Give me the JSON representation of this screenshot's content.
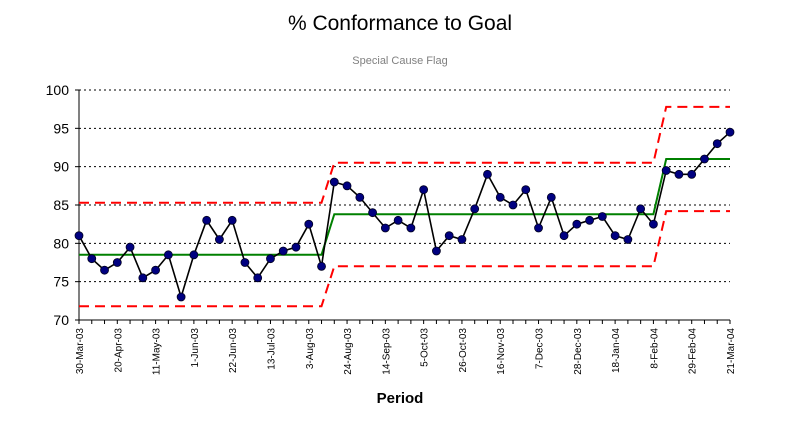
{
  "chart_data": {
    "type": "line",
    "title": "% Conformance to Goal",
    "subtitle": "Special Cause Flag",
    "xlabel": "Period",
    "ylabel": "",
    "ylim": [
      70,
      100
    ],
    "yticks": [
      70,
      75,
      80,
      85,
      90,
      95,
      100
    ],
    "grid": "horizontal dotted",
    "x_tick_labels": [
      {
        "index": 0,
        "label": "30-Mar-03"
      },
      {
        "index": 3,
        "label": "20-Apr-03"
      },
      {
        "index": 6,
        "label": "11-May-03"
      },
      {
        "index": 9,
        "label": "1-Jun-03"
      },
      {
        "index": 12,
        "label": "22-Jun-03"
      },
      {
        "index": 15,
        "label": "13-Jul-03"
      },
      {
        "index": 18,
        "label": "3-Aug-03"
      },
      {
        "index": 21,
        "label": "24-Aug-03"
      },
      {
        "index": 24,
        "label": "14-Sep-03"
      },
      {
        "index": 27,
        "label": "5-Oct-03"
      },
      {
        "index": 30,
        "label": "26-Oct-03"
      },
      {
        "index": 33,
        "label": "16-Nov-03"
      },
      {
        "index": 36,
        "label": "7-Dec-03"
      },
      {
        "index": 39,
        "label": "28-Dec-03"
      },
      {
        "index": 42,
        "label": "18-Jan-04"
      },
      {
        "index": 45,
        "label": "8-Feb-04"
      },
      {
        "index": 48,
        "label": "29-Feb-04"
      },
      {
        "index": 51,
        "label": "21-Mar-04"
      }
    ],
    "series": [
      {
        "role": "data",
        "color": "#000000",
        "marker_color": "#000080",
        "values": [
          81,
          78,
          76.5,
          77.5,
          79.5,
          75.5,
          76.5,
          78.5,
          73,
          78.5,
          83,
          80.5,
          83,
          77.5,
          75.5,
          78,
          79,
          79.5,
          82.5,
          77,
          88,
          87.5,
          86,
          84,
          82,
          83,
          82,
          87,
          79,
          81,
          80.5,
          84.5,
          89,
          86,
          85,
          87,
          82,
          86,
          81,
          82.5,
          83,
          83.5,
          81,
          80.5,
          84.5,
          82.5,
          89.5,
          89,
          89,
          91,
          93,
          94.5
        ]
      },
      {
        "role": "center-line",
        "color": "#008000",
        "segments": [
          {
            "from": 0,
            "to": 19,
            "value": 78.5
          },
          {
            "from": 20,
            "to": 45,
            "value": 83.8
          },
          {
            "from": 46,
            "to": 51,
            "value": 91
          }
        ]
      },
      {
        "role": "upper-limit",
        "color": "#ff0000",
        "segments": [
          {
            "from": 0,
            "to": 19,
            "value": 85.3
          },
          {
            "from": 20,
            "to": 45,
            "value": 90.5
          },
          {
            "from": 46,
            "to": 51,
            "value": 97.8
          }
        ]
      },
      {
        "role": "lower-limit",
        "color": "#ff0000",
        "segments": [
          {
            "from": 0,
            "to": 19,
            "value": 71.8
          },
          {
            "from": 20,
            "to": 45,
            "value": 77
          },
          {
            "from": 46,
            "to": 51,
            "value": 84.2
          }
        ]
      }
    ]
  }
}
